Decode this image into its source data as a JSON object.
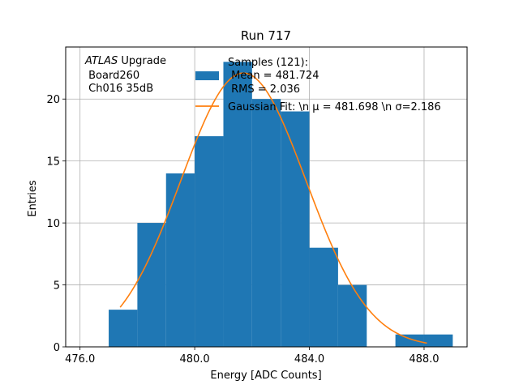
{
  "chart_data": {
    "type": "bar",
    "title": "Run 717",
    "xlabel": "Energy [ADC Counts]",
    "ylabel": "Entries",
    "xlim": [
      475.5,
      489.5
    ],
    "ylim": [
      0,
      24.2
    ],
    "xticks": [
      476,
      480,
      484,
      488
    ],
    "xtick_labels": [
      "476.0",
      "480.0",
      "484.0",
      "488.0"
    ],
    "yticks": [
      0,
      5,
      10,
      15,
      20
    ],
    "ytick_labels": [
      "0",
      "5",
      "10",
      "15",
      "20"
    ],
    "grid": true,
    "bins": [
      {
        "x0": 477,
        "x1": 478,
        "count": 3
      },
      {
        "x0": 478,
        "x1": 479,
        "count": 10
      },
      {
        "x0": 479,
        "x1": 480,
        "count": 14
      },
      {
        "x0": 480,
        "x1": 481,
        "count": 17
      },
      {
        "x0": 481,
        "x1": 482,
        "count": 23
      },
      {
        "x0": 482,
        "x1": 483,
        "count": 20
      },
      {
        "x0": 483,
        "x1": 484,
        "count": 19
      },
      {
        "x0": 484,
        "x1": 485,
        "count": 8
      },
      {
        "x0": 485,
        "x1": 486,
        "count": 5
      },
      {
        "x0": 486,
        "x1": 487,
        "count": 0
      },
      {
        "x0": 487,
        "x1": 488,
        "count": 1
      },
      {
        "x0": 488,
        "x1": 489,
        "count": 1
      }
    ],
    "bar_color": "#1f77b4",
    "fit": {
      "type": "gaussian",
      "mu": 481.698,
      "sigma": 2.186,
      "amplitude": 22.1,
      "x_range": [
        477.4,
        488.1
      ],
      "color": "#ff7f0e"
    },
    "annotation": {
      "line1_italic": "ATLAS",
      "line1_rest": " Upgrade",
      "line2": " Board260",
      "line3": " Ch016 35dB"
    },
    "legend": {
      "placement": "top-center",
      "hist_line1": "Samples (121):",
      "hist_line2": " Mean = 481.724",
      "hist_line3": " RMS = 2.036",
      "fit_label": "Gaussian Fit: \\n μ = 481.698 \\n σ=2.186"
    }
  }
}
